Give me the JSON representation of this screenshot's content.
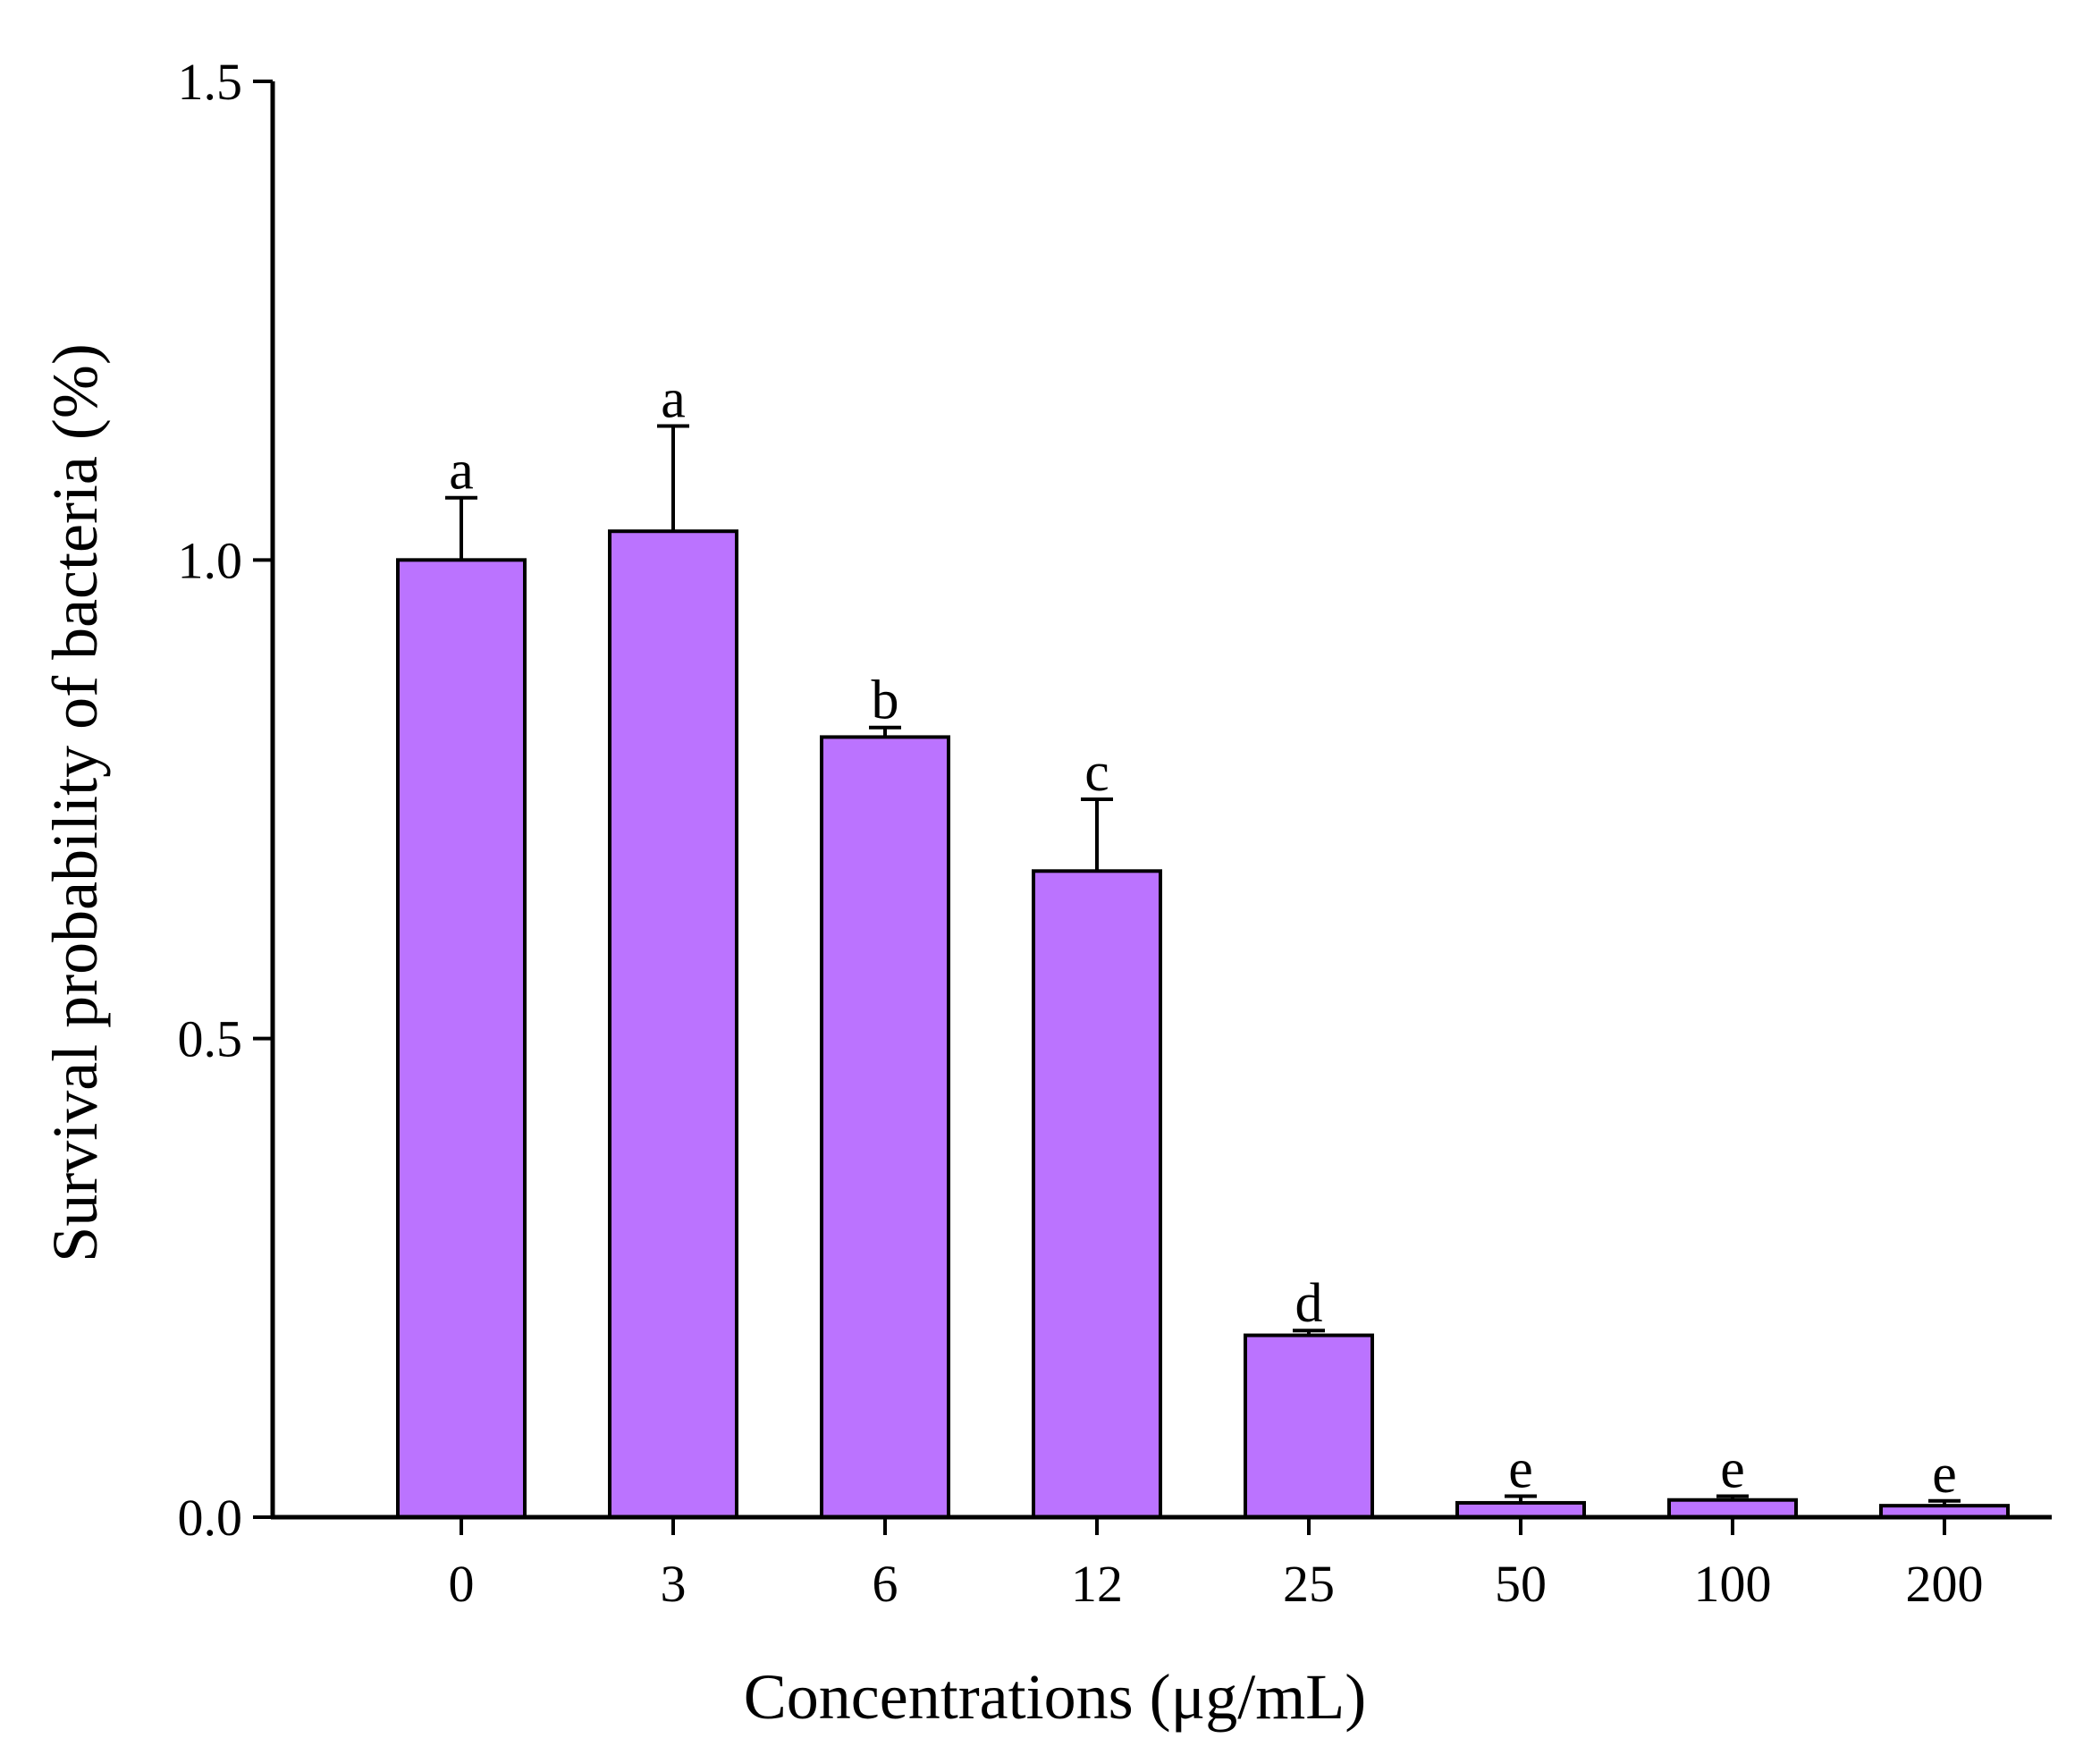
{
  "chart_data": {
    "type": "bar",
    "title": "",
    "xlabel": "Concentrations (μg/mL)",
    "ylabel": "Survival probability of bacteria (%)",
    "ylim": [
      0,
      1.5
    ],
    "yticks": [
      "0.0",
      "0.5",
      "1.0",
      "1.5"
    ],
    "categories": [
      "0",
      "3",
      "6",
      "12",
      "25",
      "50",
      "100",
      "200"
    ],
    "values": [
      1.0,
      1.03,
      0.815,
      0.675,
      0.19,
      0.015,
      0.018,
      0.012
    ],
    "errors": [
      0.065,
      0.11,
      0.01,
      0.075,
      0.005,
      0.007,
      0.004,
      0.005
    ],
    "significance_labels": [
      "a",
      "a",
      "b",
      "c",
      "d",
      "e",
      "e",
      "e"
    ],
    "bar_color": "#bb73ff",
    "grid": false,
    "legend": "none"
  }
}
